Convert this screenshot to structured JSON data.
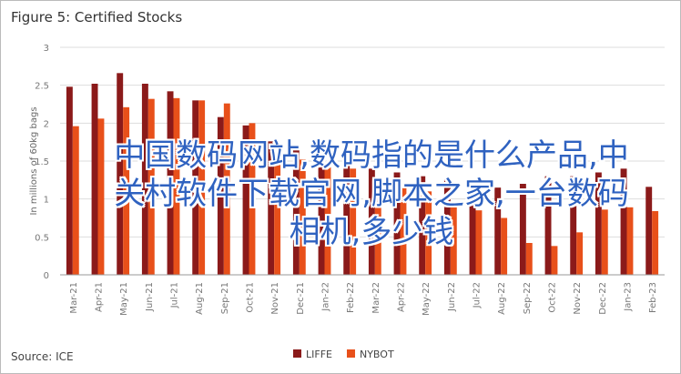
{
  "chart_data": {
    "type": "bar",
    "title": "Figure 5: Certified Stocks",
    "y_label": "In millions of 60kg bags",
    "source": "Source: ICE",
    "categories": [
      "Mar-21",
      "Apr-21",
      "May-21",
      "Jun-21",
      "Jul-21",
      "Aug-21",
      "Sep-21",
      "Oct-21",
      "Nov-21",
      "Dec-21",
      "Jan-22",
      "Feb-22",
      "Mar-22",
      "Apr-22",
      "May-22",
      "Jun-22",
      "Jul-22",
      "Aug-22",
      "Sep-22",
      "Oct-22",
      "Nov-22",
      "Dec-22",
      "Jan-23",
      "Feb-23"
    ],
    "series": [
      {
        "name": "LIFFE",
        "color": "#8b1a1a",
        "values": [
          2.48,
          2.52,
          2.66,
          2.52,
          2.42,
          2.3,
          2.08,
          1.97,
          1.76,
          1.64,
          1.55,
          1.5,
          1.4,
          1.35,
          1.3,
          1.25,
          1.2,
          1.15,
          1.2,
          1.3,
          1.3,
          1.35,
          1.4,
          1.16
        ]
      },
      {
        "name": "NYBOT",
        "color": "#e8501a",
        "values": [
          1.96,
          2.06,
          2.21,
          2.32,
          2.33,
          2.3,
          2.26,
          2.0,
          1.58,
          1.52,
          1.45,
          1.4,
          1.2,
          1.15,
          1.1,
          0.91,
          0.85,
          0.75,
          0.42,
          0.38,
          0.56,
          0.86,
          0.89,
          0.84
        ]
      }
    ],
    "ylim": [
      0,
      3
    ],
    "yticks": [
      0,
      0.5,
      1,
      1.5,
      2,
      2.5,
      3
    ],
    "grid": true
  },
  "overlay_text": "中国数码网站,数码指的是什么产品,中关村软件下载官网,脚本之家,一台数码相机,多少钱"
}
